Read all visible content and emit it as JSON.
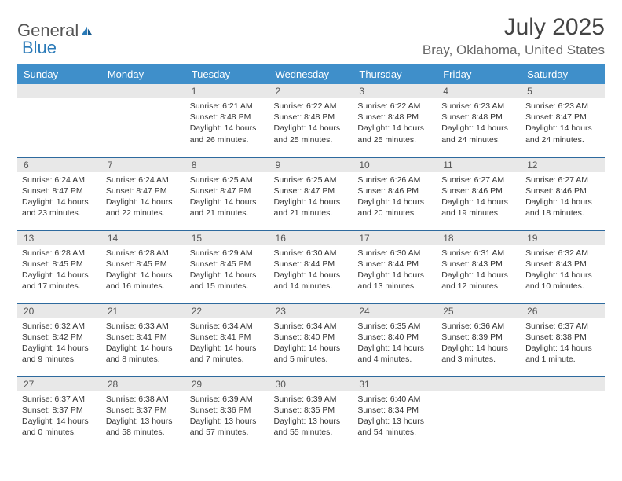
{
  "logo": {
    "part1": "General",
    "part2": "Blue"
  },
  "title": "July 2025",
  "location": "Bray, Oklahoma, United States",
  "colors": {
    "header_bg": "#3f8fca",
    "header_text": "#ffffff",
    "daynum_bg": "#e8e8e8",
    "border": "#2e6a9e",
    "logo_gray": "#555555",
    "logo_blue": "#2a7ab8"
  },
  "weekdays": [
    "Sunday",
    "Monday",
    "Tuesday",
    "Wednesday",
    "Thursday",
    "Friday",
    "Saturday"
  ],
  "weeks": [
    [
      null,
      null,
      {
        "n": "1",
        "sr": "Sunrise: 6:21 AM",
        "ss": "Sunset: 8:48 PM",
        "dl": "Daylight: 14 hours and 26 minutes."
      },
      {
        "n": "2",
        "sr": "Sunrise: 6:22 AM",
        "ss": "Sunset: 8:48 PM",
        "dl": "Daylight: 14 hours and 25 minutes."
      },
      {
        "n": "3",
        "sr": "Sunrise: 6:22 AM",
        "ss": "Sunset: 8:48 PM",
        "dl": "Daylight: 14 hours and 25 minutes."
      },
      {
        "n": "4",
        "sr": "Sunrise: 6:23 AM",
        "ss": "Sunset: 8:48 PM",
        "dl": "Daylight: 14 hours and 24 minutes."
      },
      {
        "n": "5",
        "sr": "Sunrise: 6:23 AM",
        "ss": "Sunset: 8:47 PM",
        "dl": "Daylight: 14 hours and 24 minutes."
      }
    ],
    [
      {
        "n": "6",
        "sr": "Sunrise: 6:24 AM",
        "ss": "Sunset: 8:47 PM",
        "dl": "Daylight: 14 hours and 23 minutes."
      },
      {
        "n": "7",
        "sr": "Sunrise: 6:24 AM",
        "ss": "Sunset: 8:47 PM",
        "dl": "Daylight: 14 hours and 22 minutes."
      },
      {
        "n": "8",
        "sr": "Sunrise: 6:25 AM",
        "ss": "Sunset: 8:47 PM",
        "dl": "Daylight: 14 hours and 21 minutes."
      },
      {
        "n": "9",
        "sr": "Sunrise: 6:25 AM",
        "ss": "Sunset: 8:47 PM",
        "dl": "Daylight: 14 hours and 21 minutes."
      },
      {
        "n": "10",
        "sr": "Sunrise: 6:26 AM",
        "ss": "Sunset: 8:46 PM",
        "dl": "Daylight: 14 hours and 20 minutes."
      },
      {
        "n": "11",
        "sr": "Sunrise: 6:27 AM",
        "ss": "Sunset: 8:46 PM",
        "dl": "Daylight: 14 hours and 19 minutes."
      },
      {
        "n": "12",
        "sr": "Sunrise: 6:27 AM",
        "ss": "Sunset: 8:46 PM",
        "dl": "Daylight: 14 hours and 18 minutes."
      }
    ],
    [
      {
        "n": "13",
        "sr": "Sunrise: 6:28 AM",
        "ss": "Sunset: 8:45 PM",
        "dl": "Daylight: 14 hours and 17 minutes."
      },
      {
        "n": "14",
        "sr": "Sunrise: 6:28 AM",
        "ss": "Sunset: 8:45 PM",
        "dl": "Daylight: 14 hours and 16 minutes."
      },
      {
        "n": "15",
        "sr": "Sunrise: 6:29 AM",
        "ss": "Sunset: 8:45 PM",
        "dl": "Daylight: 14 hours and 15 minutes."
      },
      {
        "n": "16",
        "sr": "Sunrise: 6:30 AM",
        "ss": "Sunset: 8:44 PM",
        "dl": "Daylight: 14 hours and 14 minutes."
      },
      {
        "n": "17",
        "sr": "Sunrise: 6:30 AM",
        "ss": "Sunset: 8:44 PM",
        "dl": "Daylight: 14 hours and 13 minutes."
      },
      {
        "n": "18",
        "sr": "Sunrise: 6:31 AM",
        "ss": "Sunset: 8:43 PM",
        "dl": "Daylight: 14 hours and 12 minutes."
      },
      {
        "n": "19",
        "sr": "Sunrise: 6:32 AM",
        "ss": "Sunset: 8:43 PM",
        "dl": "Daylight: 14 hours and 10 minutes."
      }
    ],
    [
      {
        "n": "20",
        "sr": "Sunrise: 6:32 AM",
        "ss": "Sunset: 8:42 PM",
        "dl": "Daylight: 14 hours and 9 minutes."
      },
      {
        "n": "21",
        "sr": "Sunrise: 6:33 AM",
        "ss": "Sunset: 8:41 PM",
        "dl": "Daylight: 14 hours and 8 minutes."
      },
      {
        "n": "22",
        "sr": "Sunrise: 6:34 AM",
        "ss": "Sunset: 8:41 PM",
        "dl": "Daylight: 14 hours and 7 minutes."
      },
      {
        "n": "23",
        "sr": "Sunrise: 6:34 AM",
        "ss": "Sunset: 8:40 PM",
        "dl": "Daylight: 14 hours and 5 minutes."
      },
      {
        "n": "24",
        "sr": "Sunrise: 6:35 AM",
        "ss": "Sunset: 8:40 PM",
        "dl": "Daylight: 14 hours and 4 minutes."
      },
      {
        "n": "25",
        "sr": "Sunrise: 6:36 AM",
        "ss": "Sunset: 8:39 PM",
        "dl": "Daylight: 14 hours and 3 minutes."
      },
      {
        "n": "26",
        "sr": "Sunrise: 6:37 AM",
        "ss": "Sunset: 8:38 PM",
        "dl": "Daylight: 14 hours and 1 minute."
      }
    ],
    [
      {
        "n": "27",
        "sr": "Sunrise: 6:37 AM",
        "ss": "Sunset: 8:37 PM",
        "dl": "Daylight: 14 hours and 0 minutes."
      },
      {
        "n": "28",
        "sr": "Sunrise: 6:38 AM",
        "ss": "Sunset: 8:37 PM",
        "dl": "Daylight: 13 hours and 58 minutes."
      },
      {
        "n": "29",
        "sr": "Sunrise: 6:39 AM",
        "ss": "Sunset: 8:36 PM",
        "dl": "Daylight: 13 hours and 57 minutes."
      },
      {
        "n": "30",
        "sr": "Sunrise: 6:39 AM",
        "ss": "Sunset: 8:35 PM",
        "dl": "Daylight: 13 hours and 55 minutes."
      },
      {
        "n": "31",
        "sr": "Sunrise: 6:40 AM",
        "ss": "Sunset: 8:34 PM",
        "dl": "Daylight: 13 hours and 54 minutes."
      },
      null,
      null
    ]
  ]
}
